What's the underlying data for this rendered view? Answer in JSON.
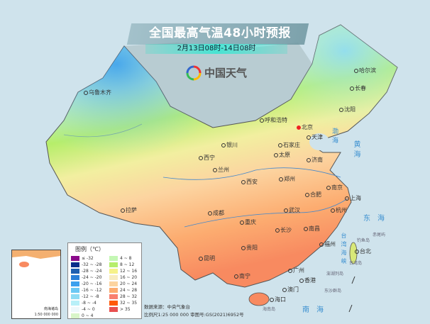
{
  "header": {
    "title": "全国最高气温48小时预报",
    "subtitle": "2月13日08时-14日08时"
  },
  "logo": {
    "text": "中国天气",
    "icon": "swirl-logo-icon"
  },
  "cities": [
    "乌鲁木齐",
    "哈尔滨",
    "长春",
    "沈阳",
    "呼和浩特",
    "北京",
    "天津",
    "石家庄",
    "太原",
    "银川",
    "西宁",
    "兰州",
    "济南",
    "西安",
    "郑州",
    "合肥",
    "南京",
    "上海",
    "拉萨",
    "成都",
    "武汉",
    "杭州",
    "重庆",
    "长沙",
    "南昌",
    "福州",
    "贵阳",
    "昆明",
    "台北",
    "南宁",
    "广州",
    "香港",
    "澳门",
    "海口"
  ],
  "seas": {
    "bohai": "渤海",
    "huanghai": "黄海",
    "donghai": "东海",
    "nanhai": "南海",
    "taiwan_strait": "台湾海峡"
  },
  "islands": {
    "diaoyu": "钓鱼岛",
    "chiwei": "赤尾屿",
    "taiwan": "台湾岛",
    "penghu": "澎湖列岛",
    "dongsha": "东沙群岛",
    "hainan": "海南岛"
  },
  "legend": {
    "title": "图例（℃）",
    "items": [
      {
        "label": "≤ -32",
        "color": "#8b0a8b"
      },
      {
        "label": "-32 ~ -28",
        "color": "#0a2f8a"
      },
      {
        "label": "-28 ~ -24",
        "color": "#1f5fb0"
      },
      {
        "label": "-24 ~ -20",
        "color": "#2a7fd8"
      },
      {
        "label": "-20 ~ -16",
        "color": "#3ca0ee"
      },
      {
        "label": "-16 ~ -12",
        "color": "#6cc8f4"
      },
      {
        "label": "-12 ~ -8",
        "color": "#8fdcf4"
      },
      {
        "label": "-8 ~ -4",
        "color": "#b8f0f8"
      },
      {
        "label": "-4 ~ 0",
        "color": "#eef8fb"
      },
      {
        "label": "0 ~ 4",
        "color": "#d8f5c8"
      },
      {
        "label": "4 ~ 8",
        "color": "#c4f7b4"
      },
      {
        "label": "8 ~ 12",
        "color": "#b6ee6a"
      },
      {
        "label": "12 ~ 16",
        "color": "#f6f28a"
      },
      {
        "label": "16 ~ 20",
        "color": "#f8ecc0"
      },
      {
        "label": "20 ~ 24",
        "color": "#fcd4a0"
      },
      {
        "label": "24 ~ 28",
        "color": "#fcac70"
      },
      {
        "label": "28 ~ 32",
        "color": "#f88070"
      },
      {
        "label": "32 ~ 35",
        "color": "#ff5a0a"
      },
      {
        "label": "> 35",
        "color": "#e85050"
      }
    ]
  },
  "credits": {
    "source": "数据来源：中央气象台",
    "scale": "比例尺1:25 000 000   审图号:GS(2021)6952号"
  },
  "inset": {
    "label": "南海诸岛",
    "scale": "1:50 000 000"
  }
}
